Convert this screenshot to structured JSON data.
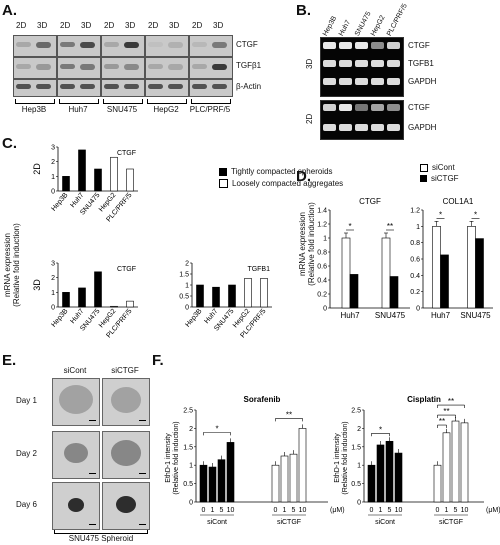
{
  "panelA": {
    "letter": "A.",
    "conditions": [
      "2D",
      "3D"
    ],
    "cell_lines": [
      "Hep3B",
      "Huh7",
      "SNU475",
      "HepG2",
      "PLC/PRF/5"
    ],
    "proteins": [
      "CTGF",
      "TGFβ1",
      "β-Actin"
    ]
  },
  "panelB": {
    "letter": "B.",
    "cell_lines": [
      "Hep3B",
      "Huh7",
      "SNU475",
      "HepG2",
      "PLC/PRF/5"
    ],
    "group_3d": "3D",
    "group_2d": "2D",
    "genes_3d": [
      "CTGF",
      "TGFB1",
      "GAPDH"
    ],
    "genes_2d": [
      "CTGF",
      "GAPDH"
    ]
  },
  "panelC": {
    "letter": "C.",
    "ylabel1": "mRNA expression",
    "ylabel2": "(Relative fold induction)",
    "legend": [
      "Tightly compacted spheroids",
      "Loosely compacted aggregates"
    ]
  },
  "panelD": {
    "letter": "D.",
    "legend": [
      "siCont",
      "siCTGF"
    ],
    "ylabel1": "mRNA expression",
    "ylabel2": "(Relative fold induction)"
  },
  "panelE": {
    "letter": "E.",
    "columns": [
      "siCont",
      "siCTGF"
    ],
    "rows": [
      "Day 1",
      "Day 2",
      "Day 6"
    ],
    "caption": "SNU475 Spheroid"
  },
  "panelF": {
    "letter": "F.",
    "ylabel1": "EthD-1 intensity",
    "ylabel2": "(Relative fold induction)",
    "group_labels": [
      "siCont",
      "siCTGF"
    ],
    "unit": "(μM)"
  },
  "chart_data": [
    {
      "id": "C-2D-CTGF",
      "type": "bar",
      "title": "CTGF",
      "row_label": "2D",
      "categories": [
        "Hep3B",
        "Huh7",
        "SNU475",
        "HepG2",
        "PLC/PRF/5"
      ],
      "values": [
        1,
        2.8,
        1.5,
        2.3,
        1.5
      ],
      "fill": [
        "black",
        "black",
        "black",
        "white",
        "white"
      ],
      "ylim": [
        0,
        3
      ],
      "yticks": [
        0,
        1,
        2,
        3
      ]
    },
    {
      "id": "C-3D-CTGF",
      "type": "bar",
      "title": "CTGF",
      "row_label": "3D",
      "categories": [
        "Hep3B",
        "Huh7",
        "SNU475",
        "HepG2",
        "PLC/PRF/5"
      ],
      "values": [
        1,
        1.3,
        2.4,
        0.05,
        0.4
      ],
      "fill": [
        "black",
        "black",
        "black",
        "white",
        "white"
      ],
      "ylim": [
        0,
        3
      ],
      "yticks": [
        0,
        1,
        2,
        3
      ]
    },
    {
      "id": "C-3D-TGFB1",
      "type": "bar",
      "title": "TGFB1",
      "categories": [
        "Hep3B",
        "Huh7",
        "SNU475",
        "HepG2",
        "PLC/PRF/5"
      ],
      "values": [
        1,
        0.9,
        1.0,
        1.3,
        1.3
      ],
      "fill": [
        "black",
        "black",
        "black",
        "white",
        "white"
      ],
      "ylim": [
        0,
        2
      ],
      "yticks": [
        0,
        0.5,
        1,
        1.5,
        2
      ]
    },
    {
      "id": "D-CTGF",
      "type": "bar",
      "title": "CTGF",
      "categories": [
        "Huh7",
        "SNU475"
      ],
      "series": [
        {
          "name": "siCont",
          "values": [
            1.0,
            1.0
          ]
        },
        {
          "name": "siCTGF",
          "values": [
            0.48,
            0.45
          ]
        }
      ],
      "ylim": [
        0,
        1.4
      ],
      "yticks": [
        0,
        0.2,
        0.4,
        0.6,
        0.8,
        1,
        1.2,
        1.4
      ],
      "significance": [
        "*",
        "**"
      ]
    },
    {
      "id": "D-COL1A1",
      "type": "bar",
      "title": "COL1A1",
      "categories": [
        "Huh7",
        "SNU475"
      ],
      "series": [
        {
          "name": "siCont",
          "values": [
            1.0,
            1.0
          ]
        },
        {
          "name": "siCTGF",
          "values": [
            0.65,
            0.85
          ]
        }
      ],
      "ylim": [
        0,
        1.2
      ],
      "yticks": [
        0,
        0.2,
        0.4,
        0.6,
        0.8,
        1,
        1.2
      ],
      "significance": [
        "*",
        "*"
      ]
    },
    {
      "id": "F-Sorafenib",
      "type": "bar",
      "title": "Sorafenib",
      "categories": [
        "0",
        "1",
        "5",
        "10"
      ],
      "series": [
        {
          "name": "siCont",
          "values": [
            1.0,
            0.95,
            1.15,
            1.62
          ]
        },
        {
          "name": "siCTGF",
          "values": [
            1.0,
            1.25,
            1.3,
            2.0
          ]
        }
      ],
      "ylim": [
        0,
        2.5
      ],
      "yticks": [
        0,
        0.5,
        1,
        1.5,
        2,
        2.5
      ],
      "significance": [
        "*",
        "**"
      ]
    },
    {
      "id": "F-Cisplatin",
      "type": "bar",
      "title": "Cisplatin",
      "categories": [
        "0",
        "1",
        "5",
        "10"
      ],
      "series": [
        {
          "name": "siCont",
          "values": [
            1.0,
            1.55,
            1.65,
            1.33
          ]
        },
        {
          "name": "siCTGF",
          "values": [
            1.0,
            1.88,
            2.2,
            2.15
          ]
        }
      ],
      "ylim": [
        0,
        2.5
      ],
      "yticks": [
        0,
        0.5,
        1,
        1.5,
        2,
        2.5
      ],
      "significance": [
        "*",
        "**",
        "**",
        "**"
      ]
    }
  ]
}
